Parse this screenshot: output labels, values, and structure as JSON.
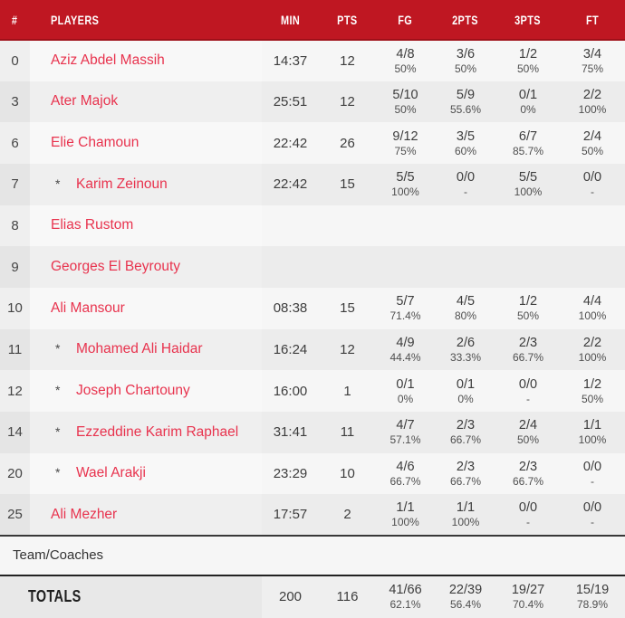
{
  "colors": {
    "header_bg": "#bf1722",
    "header_border": "#9f1019",
    "player_name": "#e8334e",
    "dark_text": "#3d3d3d"
  },
  "table": {
    "columns": [
      "#",
      "PLAYERS",
      "MIN",
      "PTS",
      "FG",
      "2PTS",
      "3PTS",
      "FT"
    ],
    "starter_marker": "*",
    "players": [
      {
        "num": "0",
        "name": "Aziz Abdel Massih",
        "starter": false,
        "min": "14:37",
        "pts": "12",
        "fg": "4/8",
        "fg_pct": "50%",
        "p2": "3/6",
        "p2_pct": "50%",
        "p3": "1/2",
        "p3_pct": "50%",
        "ft": "3/4",
        "ft_pct": "75%"
      },
      {
        "num": "3",
        "name": "Ater Majok",
        "starter": false,
        "min": "25:51",
        "pts": "12",
        "fg": "5/10",
        "fg_pct": "50%",
        "p2": "5/9",
        "p2_pct": "55.6%",
        "p3": "0/1",
        "p3_pct": "0%",
        "ft": "2/2",
        "ft_pct": "100%"
      },
      {
        "num": "6",
        "name": "Elie Chamoun",
        "starter": false,
        "min": "22:42",
        "pts": "26",
        "fg": "9/12",
        "fg_pct": "75%",
        "p2": "3/5",
        "p2_pct": "60%",
        "p3": "6/7",
        "p3_pct": "85.7%",
        "ft": "2/4",
        "ft_pct": "50%"
      },
      {
        "num": "7",
        "name": "Karim Zeinoun",
        "starter": true,
        "min": "22:42",
        "pts": "15",
        "fg": "5/5",
        "fg_pct": "100%",
        "p2": "0/0",
        "p2_pct": "-",
        "p3": "5/5",
        "p3_pct": "100%",
        "ft": "0/0",
        "ft_pct": "-"
      },
      {
        "num": "8",
        "name": "Elias Rustom",
        "starter": false,
        "min": "",
        "pts": "",
        "fg": "",
        "fg_pct": "",
        "p2": "",
        "p2_pct": "",
        "p3": "",
        "p3_pct": "",
        "ft": "",
        "ft_pct": ""
      },
      {
        "num": "9",
        "name": "Georges El Beyrouty",
        "starter": false,
        "min": "",
        "pts": "",
        "fg": "",
        "fg_pct": "",
        "p2": "",
        "p2_pct": "",
        "p3": "",
        "p3_pct": "",
        "ft": "",
        "ft_pct": ""
      },
      {
        "num": "10",
        "name": "Ali Mansour",
        "starter": false,
        "min": "08:38",
        "pts": "15",
        "fg": "5/7",
        "fg_pct": "71.4%",
        "p2": "4/5",
        "p2_pct": "80%",
        "p3": "1/2",
        "p3_pct": "50%",
        "ft": "4/4",
        "ft_pct": "100%"
      },
      {
        "num": "11",
        "name": "Mohamed Ali Haidar",
        "starter": true,
        "min": "16:24",
        "pts": "12",
        "fg": "4/9",
        "fg_pct": "44.4%",
        "p2": "2/6",
        "p2_pct": "33.3%",
        "p3": "2/3",
        "p3_pct": "66.7%",
        "ft": "2/2",
        "ft_pct": "100%"
      },
      {
        "num": "12",
        "name": "Joseph Chartouny",
        "starter": true,
        "min": "16:00",
        "pts": "1",
        "fg": "0/1",
        "fg_pct": "0%",
        "p2": "0/1",
        "p2_pct": "0%",
        "p3": "0/0",
        "p3_pct": "-",
        "ft": "1/2",
        "ft_pct": "50%"
      },
      {
        "num": "14",
        "name": "Ezzeddine Karim Raphael",
        "starter": true,
        "min": "31:41",
        "pts": "11",
        "fg": "4/7",
        "fg_pct": "57.1%",
        "p2": "2/3",
        "p2_pct": "66.7%",
        "p3": "2/4",
        "p3_pct": "50%",
        "ft": "1/1",
        "ft_pct": "100%"
      },
      {
        "num": "20",
        "name": "Wael Arakji",
        "starter": true,
        "min": "23:29",
        "pts": "10",
        "fg": "4/6",
        "fg_pct": "66.7%",
        "p2": "2/3",
        "p2_pct": "66.7%",
        "p3": "2/3",
        "p3_pct": "66.7%",
        "ft": "0/0",
        "ft_pct": "-"
      },
      {
        "num": "25",
        "name": "Ali Mezher",
        "starter": false,
        "min": "17:57",
        "pts": "2",
        "fg": "1/1",
        "fg_pct": "100%",
        "p2": "1/1",
        "p2_pct": "100%",
        "p3": "0/0",
        "p3_pct": "-",
        "ft": "0/0",
        "ft_pct": "-"
      }
    ],
    "team_row_label": "Team/Coaches",
    "totals": {
      "label": "TOTALS",
      "min": "200",
      "pts": "116",
      "fg": "41/66",
      "fg_pct": "62.1%",
      "p2": "22/39",
      "p2_pct": "56.4%",
      "p3": "19/27",
      "p3_pct": "70.4%",
      "ft": "15/19",
      "ft_pct": "78.9%"
    }
  }
}
